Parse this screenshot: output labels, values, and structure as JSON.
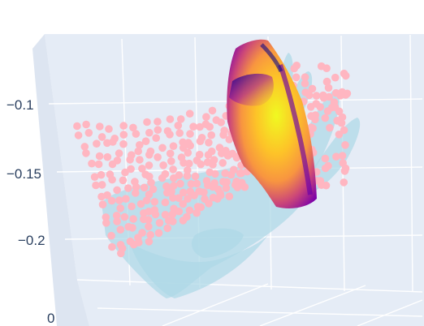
{
  "chart_data": {
    "type": "scatter3d",
    "title": "",
    "z_axis": {
      "label": "",
      "ticks": [
        "−0.1",
        "−0.15",
        "−0.2",
        "0"
      ],
      "range": [
        -0.25,
        -0.07
      ]
    },
    "grid": true,
    "background": "#E5ECF6",
    "gridline_color": "#ffffff",
    "series": [
      {
        "kind": "mesh",
        "color": "#ADD8E6",
        "opacity": 0.7
      },
      {
        "kind": "points",
        "color": "#FFB6C1",
        "marker_size": 6
      },
      {
        "kind": "surface",
        "colorscale": "plasma",
        "colors": [
          "#0d0887",
          "#6a00a8",
          "#b12a90",
          "#e16462",
          "#fca636",
          "#f0f921"
        ]
      }
    ]
  }
}
